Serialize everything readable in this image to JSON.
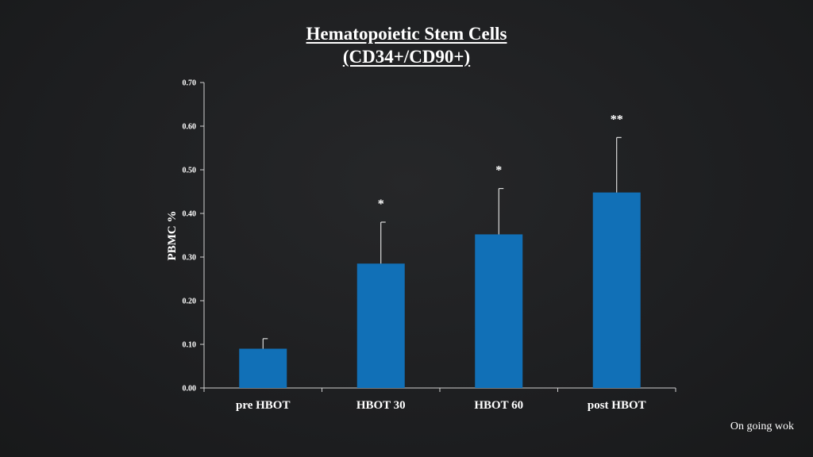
{
  "chart_data": {
    "type": "bar",
    "title_line1": "Hematopoietic Stem Cells",
    "title_line2": "(CD34+/CD90+)",
    "ylabel": "PBMC %",
    "categories": [
      "pre HBOT",
      "HBOT 30",
      "HBOT 60",
      "post HBOT"
    ],
    "values": [
      0.09,
      0.285,
      0.352,
      0.448
    ],
    "error_upper": [
      0.023,
      0.095,
      0.105,
      0.126
    ],
    "significance": [
      "",
      "*",
      "*",
      "**"
    ],
    "ylim": [
      0,
      0.7
    ],
    "yticks": [
      "0.00",
      "0.10",
      "0.20",
      "0.30",
      "0.40",
      "0.50",
      "0.60",
      "0.70"
    ],
    "bar_color": "#1170b7",
    "grid": false
  },
  "footnote": "On going wok"
}
